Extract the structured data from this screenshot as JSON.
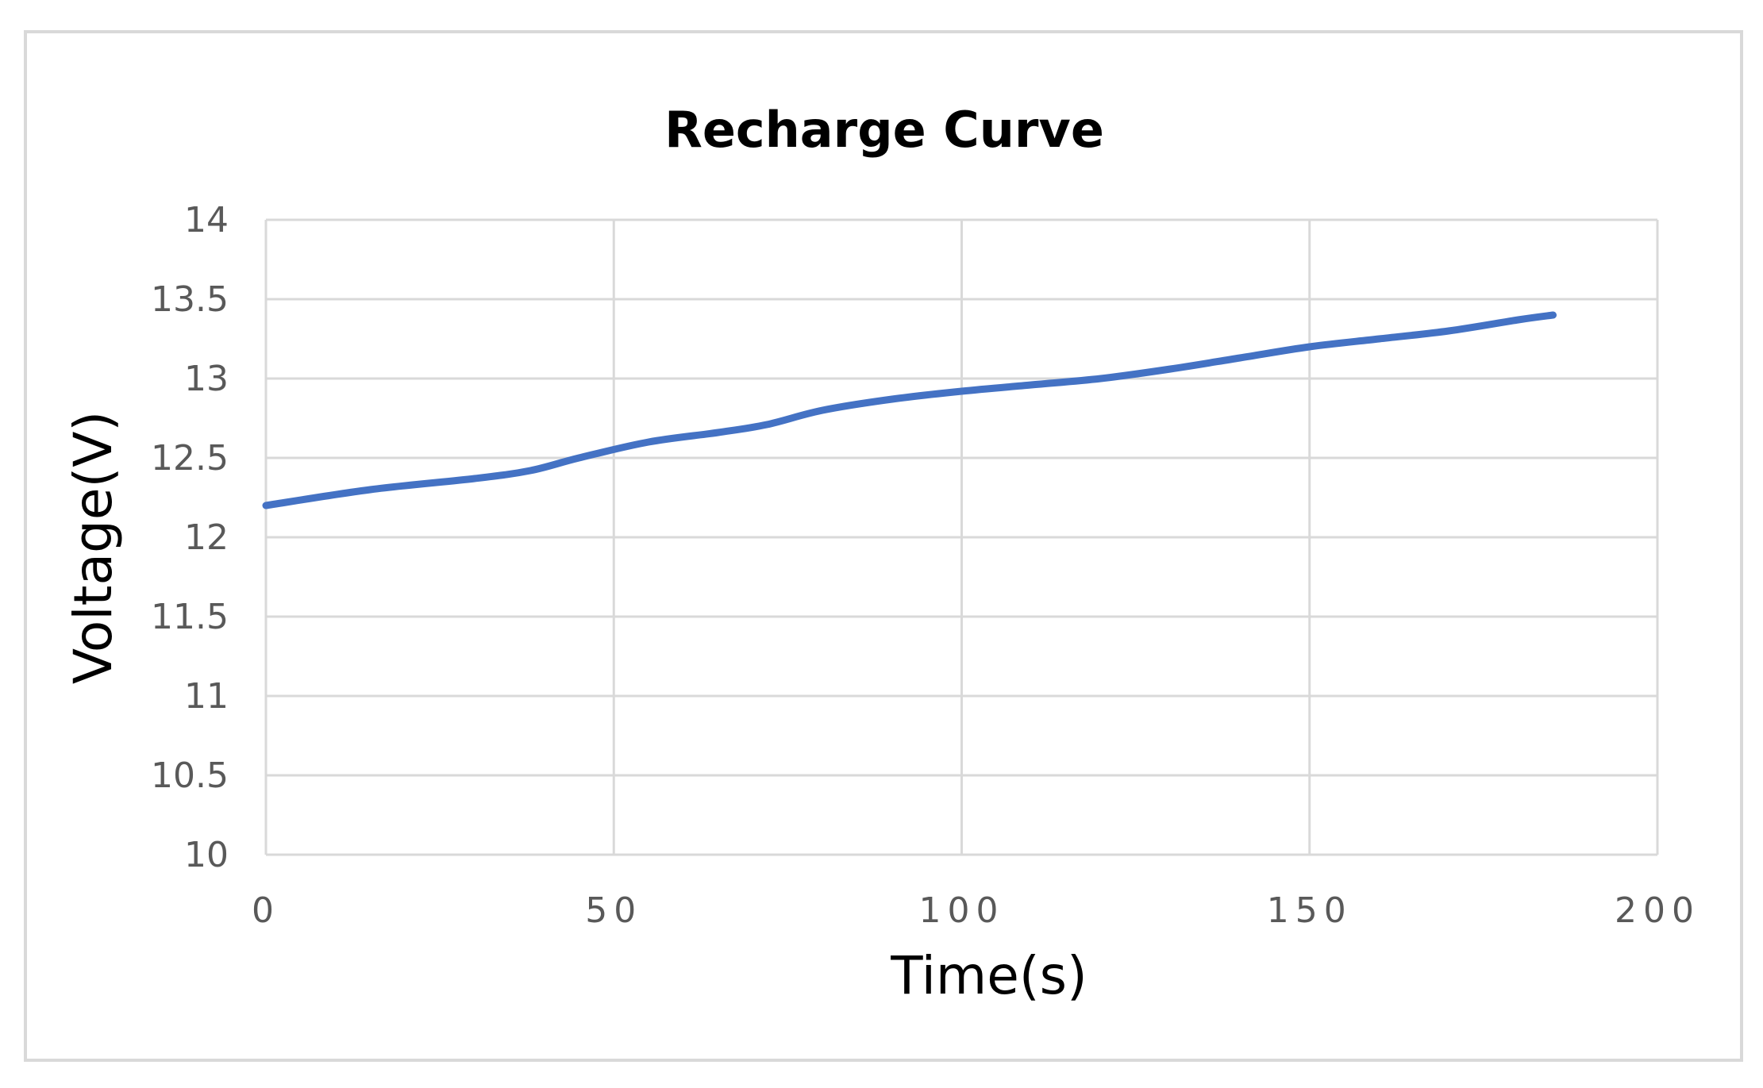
{
  "chart_data": {
    "type": "line",
    "title": "Recharge Curve",
    "xlabel": "Time(s)",
    "ylabel": "Voltage(V)",
    "xlim": [
      0,
      200
    ],
    "ylim": [
      10,
      14
    ],
    "x_ticks": [
      "0",
      "50",
      "100",
      "150",
      "200"
    ],
    "y_ticks": [
      "10",
      "10.5",
      "11",
      "11.5",
      "12",
      "12.5",
      "13",
      "13.5",
      "14"
    ],
    "grid": true,
    "legend": "none",
    "series": [
      {
        "color": "#4472c4",
        "x": [
          0,
          15,
          30,
          38,
          45,
          55,
          65,
          72,
          80,
          90,
          100,
          110,
          120,
          130,
          140,
          150,
          160,
          170,
          180,
          185
        ],
        "values": [
          12.2,
          12.3,
          12.37,
          12.42,
          12.5,
          12.6,
          12.66,
          12.71,
          12.8,
          12.87,
          12.92,
          12.96,
          13.0,
          13.06,
          13.13,
          13.2,
          13.25,
          13.3,
          13.37,
          13.4
        ]
      }
    ]
  }
}
